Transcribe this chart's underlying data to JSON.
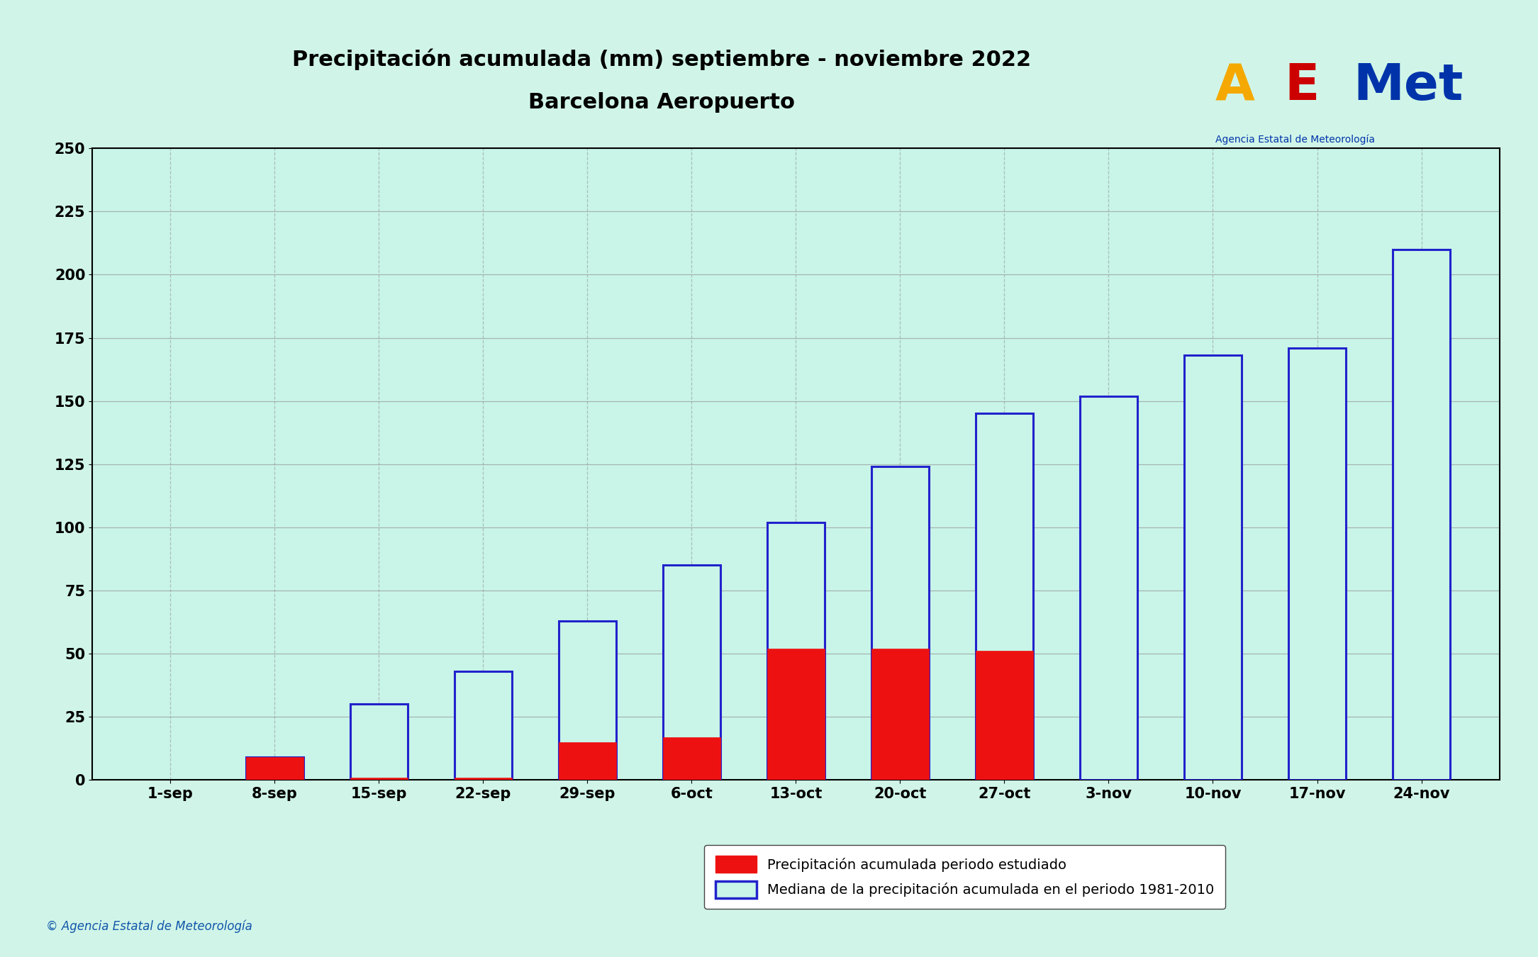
{
  "title_line1": "Precipitación acumulada (mm) septiembre - noviembre 2022",
  "title_line2": "Barcelona Aeropuerto",
  "categories": [
    "1-sep",
    "8-sep",
    "15-sep",
    "22-sep",
    "29-sep",
    "6-oct",
    "13-oct",
    "20-oct",
    "27-oct",
    "3-nov",
    "10-nov",
    "17-nov",
    "24-nov"
  ],
  "red_values": [
    0,
    9,
    1,
    1,
    15,
    17,
    52,
    52,
    51,
    0,
    0,
    0,
    0
  ],
  "blue_values": [
    0,
    9,
    30,
    43,
    63,
    85,
    102,
    124,
    145,
    152,
    168,
    171,
    210
  ],
  "fig_bg_color": "#d0f5e8",
  "plot_bg_color": "#c8f5e8",
  "bar_width": 0.55,
  "red_color": "#ee1111",
  "blue_color": "#2222cc",
  "ylim": [
    0,
    250
  ],
  "yticks": [
    0,
    25,
    50,
    75,
    100,
    125,
    150,
    175,
    200,
    225,
    250
  ],
  "title_fontsize": 22,
  "subtitle_fontsize": 22,
  "tick_fontsize": 15,
  "legend_label_red": "Precipitación acumulada periodo estudiado",
  "legend_label_blue": "Mediana de la precipitación acumulada en el periodo 1981-2010",
  "footer_text": "© Agencia Estatal de Meteorología",
  "grid_color": "#999999",
  "aemet_color": "#0033aa"
}
